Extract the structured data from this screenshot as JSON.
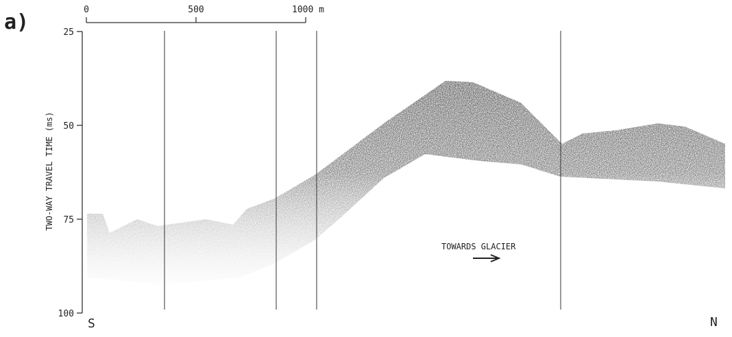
{
  "panel_label": "a)",
  "y_axis": {
    "label": "TWO-WAY TRAVEL TIME (ms)",
    "ylim": [
      25,
      100
    ],
    "yticks": [
      25,
      50,
      75,
      100
    ]
  },
  "scale_bar": {
    "xlim": [
      0,
      1000
    ],
    "xticks": [
      0,
      500,
      {
        "value": 1000,
        "label": "1000 m"
      }
    ]
  },
  "annotation": "TOWARDS GLACIER",
  "left_end": "S",
  "right_end": "N"
}
